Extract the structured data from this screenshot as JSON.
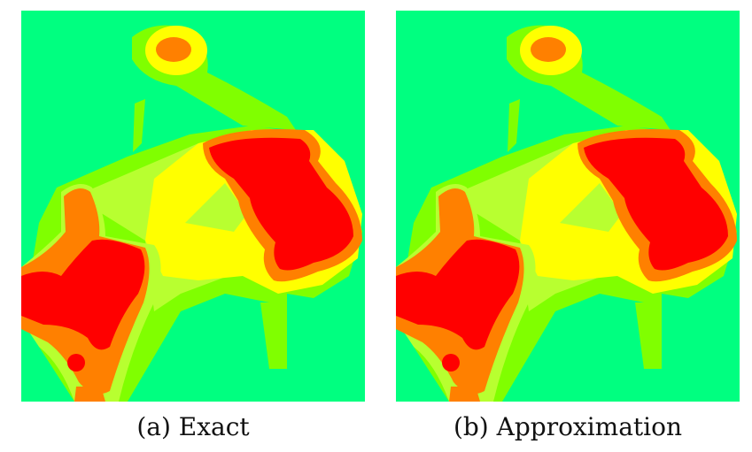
{
  "captions": {
    "a": "(a) Exact",
    "b": "(b) Approximation"
  },
  "colors": {
    "background": "#00ff80",
    "lime": "#80ff00",
    "light_green": "#b8ff30",
    "yellow": "#ffff00",
    "orange": "#ff8000",
    "red": "#ff0000"
  }
}
